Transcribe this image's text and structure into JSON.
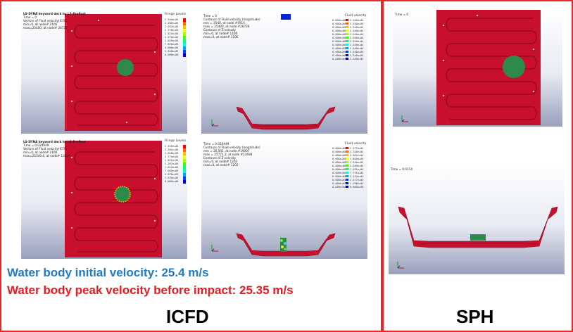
{
  "colors": {
    "frame": "#e8282b",
    "deck_red": "#c8102e",
    "deck_dark": "#8f0b20",
    "water_green": "#2d8a4a",
    "blue_text": "#2379c4",
    "red_text": "#e8191f"
  },
  "icfd": {
    "label": "ICFD",
    "initial_velocity_text": "Water body initial velocity: 25.4 m/s",
    "peak_velocity_text": "Water body peak velocity before impact: 25.35 m/s",
    "panel_tl": {
      "header": [
        "LS-DYNA keyword deck by LS-PrePost",
        "Time =        0",
        "Vectors of Fluid velocity(ICFD",
        "min=0, at node# 2106",
        "max=25400, at node# 26726"
      ],
      "legend_title": "Fringe Levels",
      "legend_levels": [
        "2.540e+04",
        "2.286e+04",
        "2.032e+04",
        "1.778e+04",
        "1.524e+04",
        "1.270e+04",
        "1.016e+04",
        "7.620e+03",
        "5.080e+03",
        "2.540e+03",
        "0.000e+00"
      ]
    },
    "panel_tr": {
      "header": [
        "Time =        0",
        "Contours of Fluid velocity (magnitude)",
        "min = 2540, at node #1914",
        "max = 25400, at node #26726",
        "Contours of Z-velocity",
        "min=0, at node# 1106",
        "max=0, at node# 1106"
      ],
      "legend_title": "Fluid velocity",
      "legend_levels": [
        "0.000e+00",
        "0.000e+00",
        "0.000e+00",
        "0.000e+00",
        "0.000e+00",
        "0.000e+00",
        "0.000e+00",
        "0.000e+00",
        "0.000e+00",
        "0.000e+00",
        "0.000e+00",
        "0.000e+00"
      ],
      "legend_levels_right": [
        "2.540e+04",
        "2.540e+04",
        "2.540e+04",
        "2.540e+04",
        "2.540e+04",
        "2.540e+04",
        "2.540e+04",
        "2.540e+04",
        "2.540e+04",
        "2.540e+04",
        "2.540e+04",
        "2.540e+04"
      ]
    },
    "panel_bl": {
      "header": [
        "LS-DYNA keyword deck by LS-PrePost",
        "Time =   0.024949",
        "Vectors of Fluid velocity(ICFD",
        "min=0, at node# 2106",
        "max=25349.4, at node# 13656"
      ],
      "legend_title": "Fringe Levels",
      "legend_levels": [
        "2.535e+04",
        "2.281e+04",
        "2.028e+04",
        "1.774e+04",
        "1.521e+04",
        "1.267e+04",
        "1.014e+04",
        "7.605e+03",
        "5.070e+03",
        "2.535e+03",
        "0.000e+00"
      ]
    },
    "panel_br": {
      "header": [
        "Time =   0.024949",
        "Contours of Fluid velocity (magnitude)",
        "min = 26,001, at node #19007",
        "max = 25771.2, at node #13694",
        "Contours of Z-velocity",
        "min=0, at node# 1202",
        "max=0, at node# 1202"
      ],
      "legend_title": "Fluid velocity",
      "legend_levels": [
        "0.000e+00",
        "0.000e+00",
        "0.000e+00",
        "0.000e+00",
        "0.000e+00",
        "0.000e+00",
        "0.000e+00",
        "0.000e+00",
        "0.000e+00",
        "0.000e+00",
        "0.000e+00",
        "0.000e+00"
      ],
      "legend_levels_right": [
        "2.577e+04",
        "2.320e+04",
        "2.062e+04",
        "1.804e+04",
        "1.546e+04",
        "1.289e+04",
        "1.031e+04",
        "7.731e+03",
        "5.154e+03",
        "2.577e+03",
        "1.290e+03",
        "0.000e+00"
      ]
    }
  },
  "sph": {
    "label": "SPH",
    "panel_top": {
      "time": "Time =        0"
    },
    "panel_bottom": {
      "time": "Time =    0.0114"
    }
  }
}
